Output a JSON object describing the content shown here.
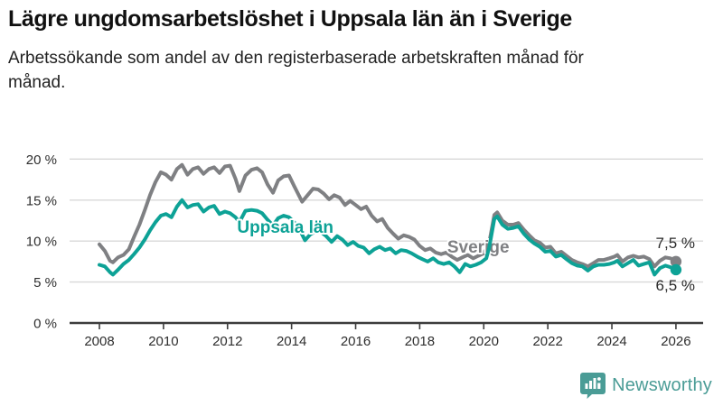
{
  "header": {
    "title": "Lägre ungdomsarbetslöshet i Uppsala län än i Sverige",
    "subtitle": "Arbetssökande som andel av den registerbaserade arbetskraften månad för månad."
  },
  "branding": {
    "name": "Newsworthy",
    "icon": "newsworthy-speech-bubble-bar-chart-icon",
    "color": "#4a9c96"
  },
  "colors": {
    "sverige_gray": "#7f8083",
    "uppsala_teal": "#0da296",
    "grid": "#d8d8d8",
    "axis": "#3c3c3c",
    "text": "#2e2e2e"
  },
  "chart_data": {
    "type": "line",
    "title": "Lägre ungdomsarbetslöshet i Uppsala län än i Sverige",
    "subtitle": "Arbetssökande som andel av den registerbaserade arbetskraften månad för månad.",
    "xlabel": "",
    "ylabel": "",
    "x_unit": "year (monthly observations)",
    "y_unit": "%",
    "xlim": [
      2007.1,
      2026.85
    ],
    "ylim": [
      0,
      22
    ],
    "grid": "horizontal",
    "legend": "inline-labels",
    "x_ticks": [
      {
        "value": 2008,
        "label": "2008"
      },
      {
        "value": 2010,
        "label": "2010"
      },
      {
        "value": 2012,
        "label": "2012"
      },
      {
        "value": 2014,
        "label": "2014"
      },
      {
        "value": 2016,
        "label": "2016"
      },
      {
        "value": 2018,
        "label": "2018"
      },
      {
        "value": 2020,
        "label": "2020"
      },
      {
        "value": 2022,
        "label": "2022"
      },
      {
        "value": 2024,
        "label": "2024"
      },
      {
        "value": 2026,
        "label": "2026"
      }
    ],
    "y_ticks": [
      {
        "value": 0,
        "label": "0 %"
      },
      {
        "value": 5,
        "label": "5 %"
      },
      {
        "value": 10,
        "label": "10 %"
      },
      {
        "value": 15,
        "label": "15 %"
      },
      {
        "value": 20,
        "label": "20 %"
      }
    ],
    "series": [
      {
        "name": "Sverige",
        "color": "#7f8083",
        "end_label": "7,5 %",
        "end_value": 7.5,
        "label_anchor": {
          "x": 2018.86,
          "y": 8.6
        },
        "points": [
          [
            2008.0,
            9.6
          ],
          [
            2008.17,
            8.8
          ],
          [
            2008.33,
            7.6
          ],
          [
            2008.42,
            7.4
          ],
          [
            2008.58,
            8.0
          ],
          [
            2008.75,
            8.3
          ],
          [
            2008.92,
            9.0
          ],
          [
            2009.08,
            10.5
          ],
          [
            2009.25,
            12.0
          ],
          [
            2009.42,
            13.8
          ],
          [
            2009.58,
            15.6
          ],
          [
            2009.75,
            17.2
          ],
          [
            2009.92,
            18.4
          ],
          [
            2010.08,
            18.1
          ],
          [
            2010.25,
            17.5
          ],
          [
            2010.42,
            18.8
          ],
          [
            2010.58,
            19.3
          ],
          [
            2010.75,
            18.1
          ],
          [
            2010.92,
            18.8
          ],
          [
            2011.08,
            19.0
          ],
          [
            2011.25,
            18.2
          ],
          [
            2011.42,
            18.8
          ],
          [
            2011.58,
            19.0
          ],
          [
            2011.75,
            18.3
          ],
          [
            2011.92,
            19.1
          ],
          [
            2012.08,
            19.2
          ],
          [
            2012.25,
            17.6
          ],
          [
            2012.37,
            16.1
          ],
          [
            2012.56,
            18.0
          ],
          [
            2012.75,
            18.7
          ],
          [
            2012.92,
            18.9
          ],
          [
            2013.08,
            18.4
          ],
          [
            2013.25,
            16.9
          ],
          [
            2013.42,
            15.9
          ],
          [
            2013.58,
            17.4
          ],
          [
            2013.75,
            17.9
          ],
          [
            2013.92,
            18.0
          ],
          [
            2014.08,
            16.7
          ],
          [
            2014.25,
            15.4
          ],
          [
            2014.33,
            14.8
          ],
          [
            2014.5,
            15.6
          ],
          [
            2014.67,
            16.4
          ],
          [
            2014.83,
            16.3
          ],
          [
            2015.0,
            15.8
          ],
          [
            2015.17,
            15.1
          ],
          [
            2015.33,
            15.6
          ],
          [
            2015.5,
            15.3
          ],
          [
            2015.67,
            14.4
          ],
          [
            2015.83,
            14.9
          ],
          [
            2016.0,
            14.4
          ],
          [
            2016.17,
            13.9
          ],
          [
            2016.33,
            14.2
          ],
          [
            2016.5,
            13.1
          ],
          [
            2016.67,
            12.4
          ],
          [
            2016.83,
            12.7
          ],
          [
            2017.0,
            11.6
          ],
          [
            2017.17,
            10.9
          ],
          [
            2017.33,
            10.3
          ],
          [
            2017.5,
            10.7
          ],
          [
            2017.67,
            10.5
          ],
          [
            2017.83,
            10.2
          ],
          [
            2018.0,
            9.4
          ],
          [
            2018.17,
            8.9
          ],
          [
            2018.33,
            9.1
          ],
          [
            2018.5,
            8.6
          ],
          [
            2018.67,
            8.4
          ],
          [
            2018.83,
            8.6
          ],
          [
            2019.0,
            8.1
          ],
          [
            2019.17,
            7.7
          ],
          [
            2019.33,
            8.0
          ],
          [
            2019.5,
            8.3
          ],
          [
            2019.67,
            7.9
          ],
          [
            2019.83,
            8.2
          ],
          [
            2020.0,
            8.5
          ],
          [
            2020.17,
            9.8
          ],
          [
            2020.33,
            13.2
          ],
          [
            2020.42,
            13.5
          ],
          [
            2020.58,
            12.5
          ],
          [
            2020.75,
            12.0
          ],
          [
            2020.92,
            12.0
          ],
          [
            2021.08,
            12.2
          ],
          [
            2021.25,
            11.4
          ],
          [
            2021.42,
            10.7
          ],
          [
            2021.58,
            10.1
          ],
          [
            2021.75,
            9.8
          ],
          [
            2021.92,
            9.2
          ],
          [
            2022.08,
            9.3
          ],
          [
            2022.25,
            8.5
          ],
          [
            2022.42,
            8.7
          ],
          [
            2022.58,
            8.2
          ],
          [
            2022.75,
            7.7
          ],
          [
            2022.92,
            7.4
          ],
          [
            2023.08,
            7.2
          ],
          [
            2023.25,
            6.9
          ],
          [
            2023.42,
            7.3
          ],
          [
            2023.58,
            7.7
          ],
          [
            2023.75,
            7.7
          ],
          [
            2023.92,
            7.9
          ],
          [
            2024.08,
            8.1
          ],
          [
            2024.17,
            8.3
          ],
          [
            2024.33,
            7.5
          ],
          [
            2024.5,
            8.0
          ],
          [
            2024.67,
            8.2
          ],
          [
            2024.83,
            8.0
          ],
          [
            2025.0,
            8.1
          ],
          [
            2025.17,
            7.8
          ],
          [
            2025.33,
            6.9
          ],
          [
            2025.5,
            7.6
          ],
          [
            2025.67,
            8.0
          ],
          [
            2025.83,
            7.9
          ],
          [
            2026.0,
            7.5
          ]
        ]
      },
      {
        "name": "Uppsala län",
        "color": "#0da296",
        "end_label": "6,5 %",
        "end_value": 6.5,
        "label_anchor": {
          "x": 2012.3,
          "y": 11.0
        },
        "points": [
          [
            2008.0,
            7.1
          ],
          [
            2008.17,
            6.9
          ],
          [
            2008.33,
            6.2
          ],
          [
            2008.42,
            5.9
          ],
          [
            2008.58,
            6.5
          ],
          [
            2008.75,
            7.2
          ],
          [
            2008.92,
            7.7
          ],
          [
            2009.08,
            8.4
          ],
          [
            2009.25,
            9.2
          ],
          [
            2009.42,
            10.2
          ],
          [
            2009.58,
            11.3
          ],
          [
            2009.75,
            12.3
          ],
          [
            2009.92,
            13.1
          ],
          [
            2010.08,
            13.3
          ],
          [
            2010.25,
            12.9
          ],
          [
            2010.42,
            14.2
          ],
          [
            2010.58,
            15.0
          ],
          [
            2010.75,
            14.1
          ],
          [
            2010.92,
            14.4
          ],
          [
            2011.08,
            14.5
          ],
          [
            2011.25,
            13.6
          ],
          [
            2011.42,
            14.1
          ],
          [
            2011.58,
            14.3
          ],
          [
            2011.75,
            13.3
          ],
          [
            2011.92,
            13.6
          ],
          [
            2012.08,
            13.4
          ],
          [
            2012.25,
            12.9
          ],
          [
            2012.37,
            12.3
          ],
          [
            2012.56,
            13.7
          ],
          [
            2012.75,
            13.8
          ],
          [
            2012.92,
            13.7
          ],
          [
            2013.08,
            13.4
          ],
          [
            2013.25,
            12.6
          ],
          [
            2013.42,
            11.9
          ],
          [
            2013.58,
            12.8
          ],
          [
            2013.75,
            13.1
          ],
          [
            2013.92,
            12.9
          ],
          [
            2014.08,
            12.3
          ],
          [
            2014.25,
            11.4
          ],
          [
            2014.42,
            10.1
          ],
          [
            2014.58,
            10.8
          ],
          [
            2014.75,
            11.2
          ],
          [
            2014.92,
            11.1
          ],
          [
            2015.08,
            10.6
          ],
          [
            2015.25,
            9.9
          ],
          [
            2015.42,
            10.6
          ],
          [
            2015.58,
            10.2
          ],
          [
            2015.75,
            9.5
          ],
          [
            2015.92,
            9.9
          ],
          [
            2016.08,
            9.4
          ],
          [
            2016.25,
            9.2
          ],
          [
            2016.42,
            8.5
          ],
          [
            2016.58,
            9.0
          ],
          [
            2016.75,
            9.3
          ],
          [
            2016.92,
            8.9
          ],
          [
            2017.08,
            9.1
          ],
          [
            2017.25,
            8.5
          ],
          [
            2017.42,
            8.9
          ],
          [
            2017.58,
            8.8
          ],
          [
            2017.75,
            8.5
          ],
          [
            2017.92,
            8.1
          ],
          [
            2018.08,
            7.8
          ],
          [
            2018.25,
            7.5
          ],
          [
            2018.42,
            7.9
          ],
          [
            2018.58,
            7.4
          ],
          [
            2018.75,
            7.2
          ],
          [
            2018.92,
            7.4
          ],
          [
            2019.08,
            6.9
          ],
          [
            2019.25,
            6.2
          ],
          [
            2019.42,
            7.2
          ],
          [
            2019.58,
            6.9
          ],
          [
            2019.75,
            7.1
          ],
          [
            2019.92,
            7.4
          ],
          [
            2020.08,
            7.9
          ],
          [
            2020.17,
            9.2
          ],
          [
            2020.33,
            12.7
          ],
          [
            2020.42,
            13.0
          ],
          [
            2020.58,
            12.0
          ],
          [
            2020.75,
            11.5
          ],
          [
            2020.92,
            11.6
          ],
          [
            2021.08,
            11.8
          ],
          [
            2021.25,
            10.9
          ],
          [
            2021.42,
            10.2
          ],
          [
            2021.58,
            9.7
          ],
          [
            2021.75,
            9.3
          ],
          [
            2021.92,
            8.7
          ],
          [
            2022.08,
            8.8
          ],
          [
            2022.25,
            8.1
          ],
          [
            2022.42,
            8.3
          ],
          [
            2022.58,
            7.8
          ],
          [
            2022.75,
            7.3
          ],
          [
            2022.92,
            7.0
          ],
          [
            2023.08,
            6.9
          ],
          [
            2023.25,
            6.4
          ],
          [
            2023.42,
            6.9
          ],
          [
            2023.58,
            7.1
          ],
          [
            2023.75,
            7.1
          ],
          [
            2023.92,
            7.2
          ],
          [
            2024.08,
            7.4
          ],
          [
            2024.17,
            7.6
          ],
          [
            2024.33,
            6.9
          ],
          [
            2024.5,
            7.3
          ],
          [
            2024.67,
            7.7
          ],
          [
            2024.83,
            7.0
          ],
          [
            2025.0,
            7.2
          ],
          [
            2025.17,
            7.4
          ],
          [
            2025.33,
            5.9
          ],
          [
            2025.5,
            6.7
          ],
          [
            2025.67,
            7.0
          ],
          [
            2025.83,
            6.8
          ],
          [
            2026.0,
            6.5
          ]
        ]
      }
    ]
  }
}
